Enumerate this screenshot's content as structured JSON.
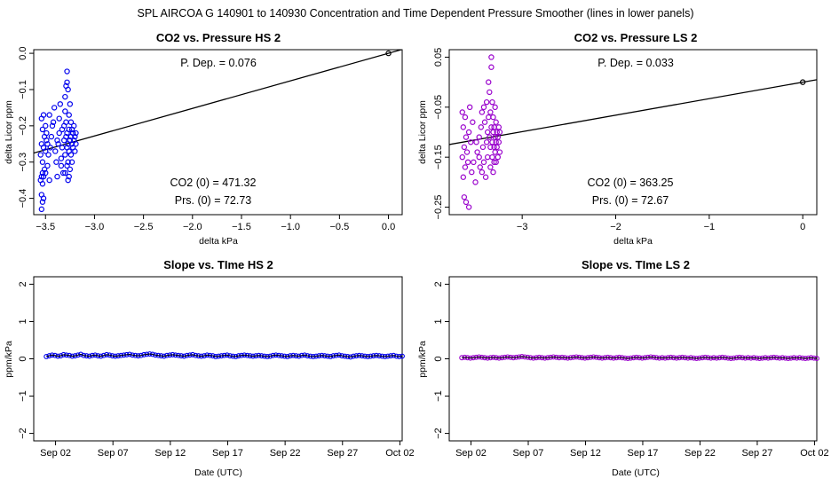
{
  "page": {
    "suptitle": "SPL    AIRCOA G    140901 to 140930    Concentration and Time Dependent Pressure Smoother (lines in lower panels)"
  },
  "chart_data": [
    {
      "type": "scatter",
      "title": "CO2 vs. Pressure HS 2",
      "xlabel": "delta kPa",
      "ylabel": "delta Licor ppm",
      "xlim": [
        -3.62,
        0.14
      ],
      "ylim": [
        -0.445,
        0.01
      ],
      "xticks": [
        -3.5,
        -3.0,
        -2.5,
        -2.0,
        -1.5,
        -1.0,
        -0.5,
        0.0
      ],
      "xtick_labels": [
        "−3.5",
        "−3.0",
        "−2.5",
        "−2.0",
        "−1.5",
        "−1.0",
        "−0.5",
        "0.0"
      ],
      "yticks": [
        0.0,
        -0.1,
        -0.2,
        -0.3,
        -0.4
      ],
      "ytick_labels": [
        "0.0",
        "−0.1",
        "−0.2",
        "−0.3",
        "−0.4"
      ],
      "point_color": "#0000ee",
      "fit_line": {
        "slope": 0.076,
        "intercept": 0.0,
        "color": "#000000"
      },
      "reference_point": {
        "x": 0.0,
        "y": 0.0
      },
      "annotations": {
        "pdep": "P. Dep. =  0.076",
        "co2_0": "CO2 (0) =  471.32",
        "prs_0": "Prs. (0) =  72.73"
      },
      "points": [
        [
          -3.54,
          -0.43
        ],
        [
          -3.53,
          -0.41
        ],
        [
          -3.52,
          -0.4
        ],
        [
          -3.54,
          -0.39
        ],
        [
          -3.53,
          -0.36
        ],
        [
          -3.55,
          -0.35
        ],
        [
          -3.52,
          -0.34
        ],
        [
          -3.54,
          -0.34
        ],
        [
          -3.5,
          -0.33
        ],
        [
          -3.53,
          -0.33
        ],
        [
          -3.51,
          -0.32
        ],
        [
          -3.53,
          -0.3
        ],
        [
          -3.55,
          -0.28
        ],
        [
          -3.5,
          -0.27
        ],
        [
          -3.52,
          -0.26
        ],
        [
          -3.54,
          -0.25
        ],
        [
          -3.49,
          -0.24
        ],
        [
          -3.51,
          -0.23
        ],
        [
          -3.53,
          -0.21
        ],
        [
          -3.5,
          -0.2
        ],
        [
          -3.54,
          -0.18
        ],
        [
          -3.52,
          -0.17
        ],
        [
          -3.49,
          -0.22
        ],
        [
          -3.47,
          -0.28
        ],
        [
          -3.48,
          -0.31
        ],
        [
          -3.46,
          -0.35
        ],
        [
          -3.45,
          -0.26
        ],
        [
          -3.44,
          -0.23
        ],
        [
          -3.42,
          -0.19
        ],
        [
          -3.41,
          -0.15
        ],
        [
          -3.4,
          -0.27
        ],
        [
          -3.39,
          -0.3
        ],
        [
          -3.38,
          -0.34
        ],
        [
          -3.37,
          -0.25
        ],
        [
          -3.36,
          -0.22
        ],
        [
          -3.36,
          -0.18
        ],
        [
          -3.35,
          -0.14
        ],
        [
          -3.34,
          -0.29
        ],
        [
          -3.33,
          -0.26
        ],
        [
          -3.33,
          -0.21
        ],
        [
          -3.32,
          -0.33
        ],
        [
          -3.31,
          -0.24
        ],
        [
          -3.31,
          -0.2
        ],
        [
          -3.3,
          -0.16
        ],
        [
          -3.3,
          -0.12
        ],
        [
          -3.3,
          -0.28
        ],
        [
          -3.29,
          -0.23
        ],
        [
          -3.29,
          -0.19
        ],
        [
          -3.29,
          -0.09
        ],
        [
          -3.28,
          -0.08
        ],
        [
          -3.28,
          -0.05
        ],
        [
          -3.28,
          -0.31
        ],
        [
          -3.28,
          -0.26
        ],
        [
          -3.28,
          -0.22
        ],
        [
          -3.27,
          -0.25
        ],
        [
          -3.27,
          -0.1
        ],
        [
          -3.27,
          -0.35
        ],
        [
          -3.27,
          -0.3
        ],
        [
          -3.26,
          -0.27
        ],
        [
          -3.26,
          -0.21
        ],
        [
          -3.26,
          -0.17
        ],
        [
          -3.25,
          -0.24
        ],
        [
          -3.25,
          -0.32
        ],
        [
          -3.25,
          -0.14
        ],
        [
          -3.24,
          -0.23
        ],
        [
          -3.24,
          -0.19
        ],
        [
          -3.24,
          -0.28
        ],
        [
          -3.23,
          -0.25
        ],
        [
          -3.23,
          -0.21
        ],
        [
          -3.23,
          -0.3
        ],
        [
          -3.22,
          -0.22
        ],
        [
          -3.22,
          -0.26
        ],
        [
          -3.21,
          -0.24
        ],
        [
          -3.21,
          -0.2
        ],
        [
          -3.2,
          -0.23
        ],
        [
          -3.2,
          -0.27
        ],
        [
          -3.19,
          -0.22
        ],
        [
          -3.19,
          -0.25
        ],
        [
          -3.26,
          -0.34
        ],
        [
          -3.3,
          -0.33
        ],
        [
          -3.34,
          -0.31
        ],
        [
          -3.38,
          -0.24
        ],
        [
          -3.43,
          -0.2
        ],
        [
          -3.46,
          -0.17
        ],
        [
          -3.48,
          -0.25
        ]
      ]
    },
    {
      "type": "scatter",
      "title": "CO2 vs. Pressure LS 2",
      "xlabel": "delta kPa",
      "ylabel": "delta Licor ppm",
      "xlim": [
        -3.78,
        0.15
      ],
      "ylim": [
        -0.265,
        0.065
      ],
      "xticks": [
        -3,
        -2,
        -1,
        0
      ],
      "xtick_labels": [
        "−3",
        "−2",
        "−1",
        "0"
      ],
      "yticks": [
        0.05,
        -0.05,
        -0.15,
        -0.25
      ],
      "ytick_labels": [
        "0.05",
        "−0.05",
        "−0.15",
        "−0.25"
      ],
      "point_color": "#9900cc",
      "fit_line": {
        "slope": 0.033,
        "intercept": 0.0,
        "color": "#000000"
      },
      "reference_point": {
        "x": 0.0,
        "y": 0.0
      },
      "annotations": {
        "pdep": "P. Dep. =  0.033",
        "co2_0": "CO2 (0) =  363.25",
        "prs_0": "Prs. (0) =  72.67"
      },
      "points": [
        [
          -3.62,
          -0.23
        ],
        [
          -3.6,
          -0.24
        ],
        [
          -3.57,
          -0.25
        ],
        [
          -3.63,
          -0.19
        ],
        [
          -3.61,
          -0.17
        ],
        [
          -3.64,
          -0.15
        ],
        [
          -3.62,
          -0.13
        ],
        [
          -3.6,
          -0.11
        ],
        [
          -3.63,
          -0.09
        ],
        [
          -3.61,
          -0.07
        ],
        [
          -3.64,
          -0.06
        ],
        [
          -3.59,
          -0.14
        ],
        [
          -3.58,
          -0.16
        ],
        [
          -3.57,
          -0.1
        ],
        [
          -3.56,
          -0.05
        ],
        [
          -3.55,
          -0.12
        ],
        [
          -3.54,
          -0.18
        ],
        [
          -3.53,
          -0.08
        ],
        [
          -3.5,
          -0.2
        ],
        [
          -3.48,
          -0.14
        ],
        [
          -3.46,
          -0.11
        ],
        [
          -3.45,
          -0.17
        ],
        [
          -3.44,
          -0.09
        ],
        [
          -3.43,
          -0.06
        ],
        [
          -3.42,
          -0.13
        ],
        [
          -3.41,
          -0.16
        ],
        [
          -3.4,
          -0.08
        ],
        [
          -3.39,
          -0.19
        ],
        [
          -3.38,
          -0.12
        ],
        [
          -3.38,
          -0.04
        ],
        [
          -3.37,
          -0.1
        ],
        [
          -3.37,
          -0.15
        ],
        [
          -3.36,
          -0.07
        ],
        [
          -3.36,
          0.0
        ],
        [
          -3.35,
          -0.02
        ],
        [
          -3.35,
          -0.11
        ],
        [
          -3.34,
          -0.13
        ],
        [
          -3.34,
          -0.17
        ],
        [
          -3.34,
          -0.06
        ],
        [
          -3.33,
          0.03
        ],
        [
          -3.33,
          0.05
        ],
        [
          -3.33,
          -0.09
        ],
        [
          -3.32,
          -0.12
        ],
        [
          -3.32,
          -0.15
        ],
        [
          -3.32,
          -0.04
        ],
        [
          -3.31,
          -0.1
        ],
        [
          -3.31,
          -0.18
        ],
        [
          -3.31,
          -0.07
        ],
        [
          -3.3,
          -0.13
        ],
        [
          -3.3,
          -0.16
        ],
        [
          -3.3,
          -0.09
        ],
        [
          -3.29,
          -0.11
        ],
        [
          -3.29,
          -0.14
        ],
        [
          -3.29,
          -0.05
        ],
        [
          -3.28,
          -0.12
        ],
        [
          -3.28,
          -0.08
        ],
        [
          -3.28,
          -0.16
        ],
        [
          -3.27,
          -0.1
        ],
        [
          -3.27,
          -0.13
        ],
        [
          -3.26,
          -0.11
        ],
        [
          -3.26,
          -0.15
        ],
        [
          -3.25,
          -0.09
        ],
        [
          -3.25,
          -0.12
        ],
        [
          -3.24,
          -0.14
        ],
        [
          -3.24,
          -0.1
        ],
        [
          -3.46,
          -0.15
        ],
        [
          -3.43,
          -0.18
        ],
        [
          -3.49,
          -0.12
        ],
        [
          -3.52,
          -0.16
        ],
        [
          -3.41,
          -0.05
        ]
      ]
    },
    {
      "type": "line",
      "title": "Slope vs. TIme HS 2",
      "xlabel": "Date (UTC)",
      "ylabel": "ppm/kPa",
      "xlim_days": [
        -0.9,
        31.2
      ],
      "ylim": [
        -2.2,
        2.2
      ],
      "xticks_days": [
        1,
        6,
        11,
        16,
        21,
        26,
        31
      ],
      "xtick_labels": [
        "Sep 02",
        "Sep 07",
        "Sep 12",
        "Sep 17",
        "Sep 22",
        "Sep 27",
        "Oct 02"
      ],
      "yticks": [
        -2,
        -1,
        0,
        1,
        2
      ],
      "ytick_labels": [
        "−2",
        "−1",
        "0",
        "1",
        "2"
      ],
      "point_color": "#0000ee",
      "line_color": "#000000",
      "x_start": 0.2,
      "x_step": 0.25,
      "values": [
        0.06,
        0.08,
        0.1,
        0.09,
        0.07,
        0.08,
        0.11,
        0.1,
        0.09,
        0.07,
        0.08,
        0.1,
        0.12,
        0.09,
        0.08,
        0.07,
        0.09,
        0.1,
        0.08,
        0.07,
        0.09,
        0.11,
        0.1,
        0.08,
        0.07,
        0.08,
        0.09,
        0.1,
        0.11,
        0.12,
        0.1,
        0.09,
        0.08,
        0.09,
        0.11,
        0.12,
        0.13,
        0.12,
        0.1,
        0.09,
        0.08,
        0.07,
        0.09,
        0.1,
        0.11,
        0.1,
        0.09,
        0.08,
        0.07,
        0.09,
        0.1,
        0.11,
        0.09,
        0.08,
        0.07,
        0.08,
        0.1,
        0.09,
        0.08,
        0.06,
        0.07,
        0.08,
        0.09,
        0.1,
        0.08,
        0.07,
        0.06,
        0.08,
        0.09,
        0.1,
        0.09,
        0.08,
        0.07,
        0.08,
        0.09,
        0.08,
        0.07,
        0.06,
        0.07,
        0.09,
        0.1,
        0.09,
        0.08,
        0.07,
        0.06,
        0.08,
        0.09,
        0.08,
        0.07,
        0.09,
        0.1,
        0.08,
        0.07,
        0.06,
        0.07,
        0.08,
        0.09,
        0.08,
        0.07,
        0.06,
        0.08,
        0.09,
        0.1,
        0.08,
        0.07,
        0.06,
        0.05,
        0.07,
        0.08,
        0.09,
        0.08,
        0.07,
        0.06,
        0.07,
        0.08,
        0.09,
        0.08,
        0.07,
        0.06,
        0.07,
        0.08,
        0.09,
        0.07,
        0.06,
        0.07
      ]
    },
    {
      "type": "line",
      "title": "Slope vs. TIme LS 2",
      "xlabel": "Date (UTC)",
      "ylabel": "ppm/kPa",
      "xlim_days": [
        -0.9,
        31.2
      ],
      "ylim": [
        -2.2,
        2.2
      ],
      "xticks_days": [
        1,
        6,
        11,
        16,
        21,
        26,
        31
      ],
      "xtick_labels": [
        "Sep 02",
        "Sep 07",
        "Sep 12",
        "Sep 17",
        "Sep 22",
        "Sep 27",
        "Oct 02"
      ],
      "yticks": [
        -2,
        -1,
        0,
        1,
        2
      ],
      "ytick_labels": [
        "−2",
        "−1",
        "0",
        "1",
        "2"
      ],
      "point_color": "#9900cc",
      "line_color": "#000000",
      "x_start": 0.2,
      "x_step": 0.25,
      "values": [
        0.03,
        0.04,
        0.03,
        0.02,
        0.03,
        0.04,
        0.05,
        0.04,
        0.03,
        0.02,
        0.03,
        0.04,
        0.03,
        0.02,
        0.03,
        0.04,
        0.05,
        0.04,
        0.03,
        0.04,
        0.05,
        0.06,
        0.05,
        0.04,
        0.03,
        0.02,
        0.03,
        0.04,
        0.03,
        0.02,
        0.03,
        0.04,
        0.05,
        0.04,
        0.03,
        0.04,
        0.03,
        0.02,
        0.03,
        0.04,
        0.05,
        0.04,
        0.03,
        0.02,
        0.03,
        0.04,
        0.05,
        0.04,
        0.03,
        0.02,
        0.03,
        0.04,
        0.03,
        0.02,
        0.03,
        0.04,
        0.03,
        0.02,
        0.01,
        0.02,
        0.03,
        0.04,
        0.03,
        0.02,
        0.03,
        0.04,
        0.05,
        0.04,
        0.03,
        0.02,
        0.03,
        0.02,
        0.03,
        0.04,
        0.03,
        0.02,
        0.03,
        0.04,
        0.03,
        0.02,
        0.03,
        0.02,
        0.01,
        0.02,
        0.03,
        0.04,
        0.03,
        0.02,
        0.03,
        0.02,
        0.03,
        0.04,
        0.03,
        0.02,
        0.01,
        0.02,
        0.03,
        0.04,
        0.03,
        0.02,
        0.03,
        0.02,
        0.03,
        0.02,
        0.01,
        0.02,
        0.03,
        0.02,
        0.03,
        0.04,
        0.03,
        0.02,
        0.03,
        0.02,
        0.01,
        0.02,
        0.03,
        0.02,
        0.03,
        0.02,
        0.01,
        0.02,
        0.03,
        0.02,
        0.01
      ]
    }
  ]
}
